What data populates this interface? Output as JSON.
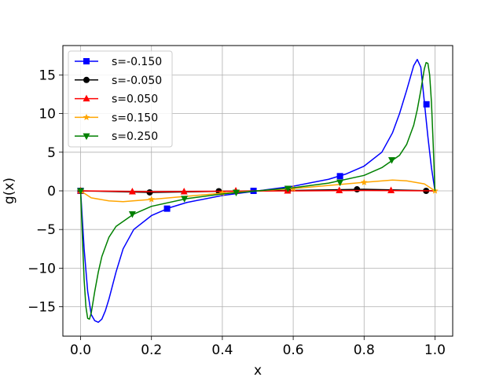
{
  "chart_data": {
    "type": "line",
    "title": "",
    "xlabel": "x",
    "ylabel": "g(x)",
    "xlim": [
      -0.05,
      1.05
    ],
    "ylim": [
      -18.8,
      18.8
    ],
    "xticks": [
      0.0,
      0.2,
      0.4,
      0.6,
      0.8,
      1.0
    ],
    "xtick_labels": [
      "0.0",
      "0.2",
      "0.4",
      "0.6",
      "0.8",
      "1.0"
    ],
    "yticks": [
      -15,
      -10,
      -5,
      0,
      5,
      10,
      15
    ],
    "ytick_labels": [
      "−15",
      "−10",
      "−5",
      "0",
      "5",
      "10",
      "15"
    ],
    "grid": true,
    "legend_position": "top-left",
    "series": [
      {
        "name": "s=-0.150",
        "color": "#0000ff",
        "marker": "square",
        "x": [
          0.0,
          0.01,
          0.02,
          0.03,
          0.04,
          0.05,
          0.06,
          0.07,
          0.08,
          0.1,
          0.12,
          0.15,
          0.2,
          0.25,
          0.3,
          0.4,
          0.5,
          0.6,
          0.7,
          0.75,
          0.8,
          0.85,
          0.88,
          0.9,
          0.92,
          0.94,
          0.95,
          0.96,
          0.97,
          0.98,
          0.99,
          1.0
        ],
        "y": [
          0.0,
          -7.5,
          -13.0,
          -16.0,
          -16.8,
          -17.0,
          -16.6,
          -15.5,
          -14.0,
          -10.5,
          -7.5,
          -5.0,
          -3.2,
          -2.2,
          -1.5,
          -0.6,
          0.0,
          0.6,
          1.5,
          2.2,
          3.2,
          5.0,
          7.5,
          10.0,
          13.0,
          16.2,
          17.0,
          16.0,
          11.5,
          7.0,
          3.0,
          0.0
        ],
        "markers": [
          {
            "x": 0.0,
            "y": 0.0
          },
          {
            "x": 0.244,
            "y": -2.3
          },
          {
            "x": 0.488,
            "y": 0.0
          },
          {
            "x": 0.732,
            "y": 1.9
          },
          {
            "x": 0.976,
            "y": 11.2
          }
        ]
      },
      {
        "name": "s=-0.050",
        "color": "#000000",
        "marker": "circle",
        "x": [
          0.0,
          0.2,
          0.4,
          0.6,
          0.8,
          1.0
        ],
        "y": [
          0.0,
          -0.2,
          -0.05,
          0.05,
          0.2,
          0.0
        ],
        "markers": [
          {
            "x": 0.0,
            "y": 0.0
          },
          {
            "x": 0.195,
            "y": -0.2
          },
          {
            "x": 0.39,
            "y": -0.05
          },
          {
            "x": 0.585,
            "y": 0.05
          },
          {
            "x": 0.78,
            "y": 0.2
          },
          {
            "x": 0.975,
            "y": 0.0
          }
        ]
      },
      {
        "name": "s=0.050",
        "color": "#ff0000",
        "marker": "triangle-up",
        "x": [
          0.0,
          0.2,
          0.4,
          0.6,
          0.8,
          1.0
        ],
        "y": [
          0.0,
          -0.1,
          -0.05,
          0.0,
          0.05,
          0.0
        ],
        "markers": [
          {
            "x": 0.0,
            "y": 0.0
          },
          {
            "x": 0.146,
            "y": -0.1
          },
          {
            "x": 0.292,
            "y": -0.1
          },
          {
            "x": 0.438,
            "y": 0.0
          },
          {
            "x": 0.584,
            "y": 0.0
          },
          {
            "x": 0.73,
            "y": 0.05
          },
          {
            "x": 0.876,
            "y": 0.05
          }
        ]
      },
      {
        "name": "s=0.150",
        "color": "#ffa500",
        "marker": "star",
        "x": [
          0.0,
          0.03,
          0.08,
          0.12,
          0.2,
          0.3,
          0.4,
          0.5,
          0.6,
          0.7,
          0.8,
          0.88,
          0.92,
          0.97,
          1.0
        ],
        "y": [
          0.0,
          -0.9,
          -1.3,
          -1.4,
          -1.1,
          -0.7,
          -0.3,
          0.0,
          0.3,
          0.7,
          1.1,
          1.4,
          1.3,
          0.9,
          0.0
        ],
        "markers": [
          {
            "x": 0.0,
            "y": 0.0
          },
          {
            "x": 0.2,
            "y": -1.1
          },
          {
            "x": 0.4,
            "y": -0.3
          },
          {
            "x": 0.6,
            "y": 0.3
          },
          {
            "x": 0.8,
            "y": 1.1
          },
          {
            "x": 1.0,
            "y": 0.0
          }
        ]
      },
      {
        "name": "s=0.250",
        "color": "#008000",
        "marker": "triangle-down",
        "x": [
          0.0,
          0.005,
          0.01,
          0.015,
          0.02,
          0.025,
          0.03,
          0.04,
          0.05,
          0.06,
          0.08,
          0.1,
          0.15,
          0.2,
          0.3,
          0.4,
          0.5,
          0.6,
          0.7,
          0.8,
          0.85,
          0.9,
          0.92,
          0.94,
          0.95,
          0.96,
          0.97,
          0.975,
          0.98,
          0.985,
          0.99,
          0.995,
          1.0
        ],
        "y": [
          0.0,
          -6.0,
          -11.5,
          -15.0,
          -16.5,
          -16.6,
          -15.8,
          -13.0,
          -10.5,
          -8.5,
          -6.0,
          -4.6,
          -3.0,
          -2.0,
          -1.0,
          -0.4,
          0.0,
          0.4,
          1.0,
          2.0,
          3.0,
          4.6,
          6.0,
          8.5,
          10.5,
          13.0,
          15.8,
          16.6,
          16.5,
          15.0,
          11.5,
          6.0,
          0.0
        ],
        "markers": [
          {
            "x": 0.0,
            "y": 0.0
          },
          {
            "x": 0.146,
            "y": -3.0
          },
          {
            "x": 0.293,
            "y": -1.0
          },
          {
            "x": 0.439,
            "y": -0.2
          },
          {
            "x": 0.585,
            "y": 0.3
          },
          {
            "x": 0.732,
            "y": 1.1
          },
          {
            "x": 0.878,
            "y": 4.0
          }
        ]
      }
    ]
  }
}
